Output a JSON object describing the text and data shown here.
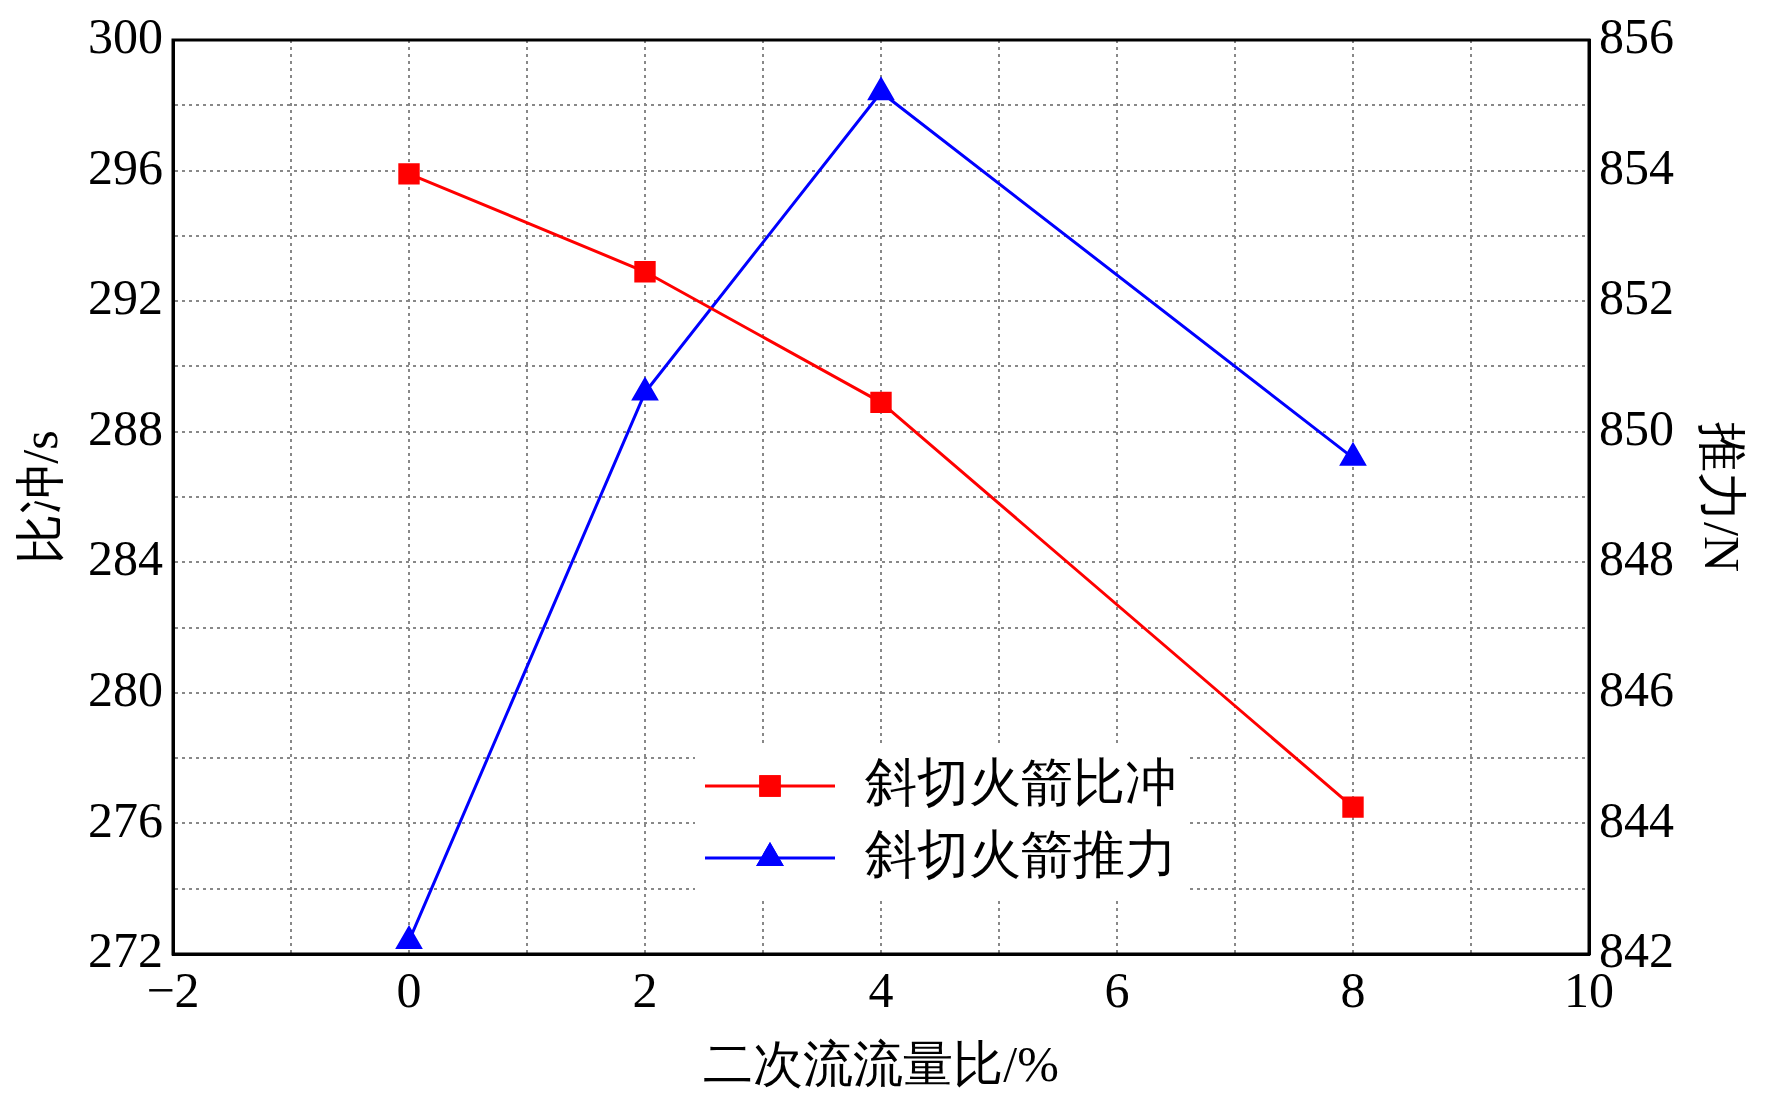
{
  "chart_data": {
    "type": "line",
    "xlabel": "二次流流量比/%",
    "ylabel": "比冲/s",
    "y2label": "推力/N",
    "x": [
      0,
      2,
      4,
      8
    ],
    "series": [
      {
        "name": "斜切火箭比冲",
        "color": "#ff0000",
        "marker": "square",
        "values": [
          295.9,
          292.9,
          288.9,
          276.5
        ]
      },
      {
        "name": "斜切火箭推力",
        "color": "#0000ff",
        "marker": "triangle",
        "axis": "y2",
        "values": [
          842.2,
          850.6,
          855.2,
          849.6
        ]
      }
    ],
    "xlim": [
      -2,
      10
    ],
    "xticks": [
      {
        "value": -2,
        "label": "−2"
      },
      {
        "value": -1,
        "label": null
      },
      0,
      {
        "value": 1,
        "label": null
      },
      2,
      {
        "value": 3,
        "label": null
      },
      4,
      {
        "value": 5,
        "label": null
      },
      6,
      {
        "value": 7,
        "label": null
      },
      8,
      {
        "value": 9,
        "label": null
      },
      10
    ],
    "ylim": [
      272,
      300
    ],
    "yticks": [
      272,
      {
        "value": 274,
        "label": null
      },
      276,
      {
        "value": 278,
        "label": null
      },
      280,
      {
        "value": 282,
        "label": null
      },
      284,
      {
        "value": 286,
        "label": null
      },
      288,
      {
        "value": 290,
        "label": null
      },
      292,
      {
        "value": 294,
        "label": null
      },
      296,
      {
        "value": 298,
        "label": null
      },
      300
    ],
    "y2lim": [
      842,
      856
    ],
    "y2ticks": [
      842,
      844,
      846,
      848,
      850,
      852,
      854,
      856
    ],
    "grid": true,
    "legend": "bottom",
    "line_style": "solid"
  }
}
